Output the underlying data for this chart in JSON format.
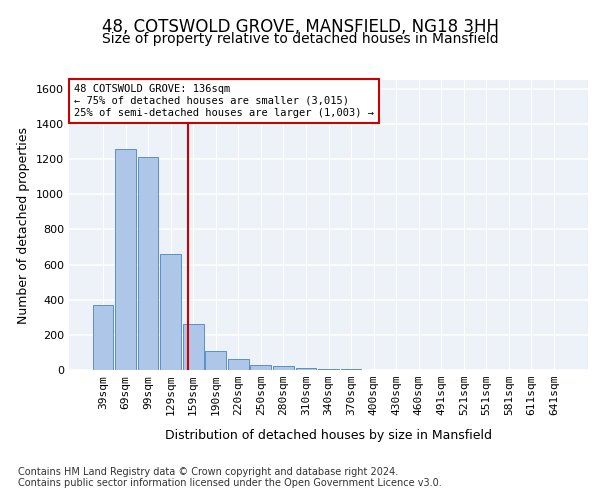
{
  "title": "48, COTSWOLD GROVE, MANSFIELD, NG18 3HH",
  "subtitle": "Size of property relative to detached houses in Mansfield",
  "xlabel": "Distribution of detached houses by size in Mansfield",
  "ylabel": "Number of detached properties",
  "categories": [
    "39sqm",
    "69sqm",
    "99sqm",
    "129sqm",
    "159sqm",
    "190sqm",
    "220sqm",
    "250sqm",
    "280sqm",
    "310sqm",
    "340sqm",
    "370sqm",
    "400sqm",
    "430sqm",
    "460sqm",
    "491sqm",
    "521sqm",
    "551sqm",
    "581sqm",
    "611sqm",
    "641sqm"
  ],
  "values": [
    370,
    1260,
    1210,
    660,
    260,
    110,
    65,
    30,
    20,
    10,
    5,
    3,
    2,
    1,
    1,
    1,
    0,
    0,
    0,
    0,
    0
  ],
  "bar_color": "#aec6e8",
  "bar_edge_color": "#5b8fc9",
  "vline_color": "#cc0000",
  "annotation_line1": "48 COTSWOLD GROVE: 136sqm",
  "annotation_line2": "← 75% of detached houses are smaller (3,015)",
  "annotation_line3": "25% of semi-detached houses are larger (1,003) →",
  "annotation_box_color": "#ffffff",
  "annotation_box_edge": "#cc0000",
  "ylim": [
    0,
    1650
  ],
  "yticks": [
    0,
    200,
    400,
    600,
    800,
    1000,
    1200,
    1400,
    1600
  ],
  "footer": "Contains HM Land Registry data © Crown copyright and database right 2024.\nContains public sector information licensed under the Open Government Licence v3.0.",
  "bg_color": "#edf2f9",
  "grid_color": "#ffffff",
  "title_fontsize": 12,
  "subtitle_fontsize": 10,
  "axis_label_fontsize": 9,
  "tick_fontsize": 8,
  "footer_fontsize": 7
}
